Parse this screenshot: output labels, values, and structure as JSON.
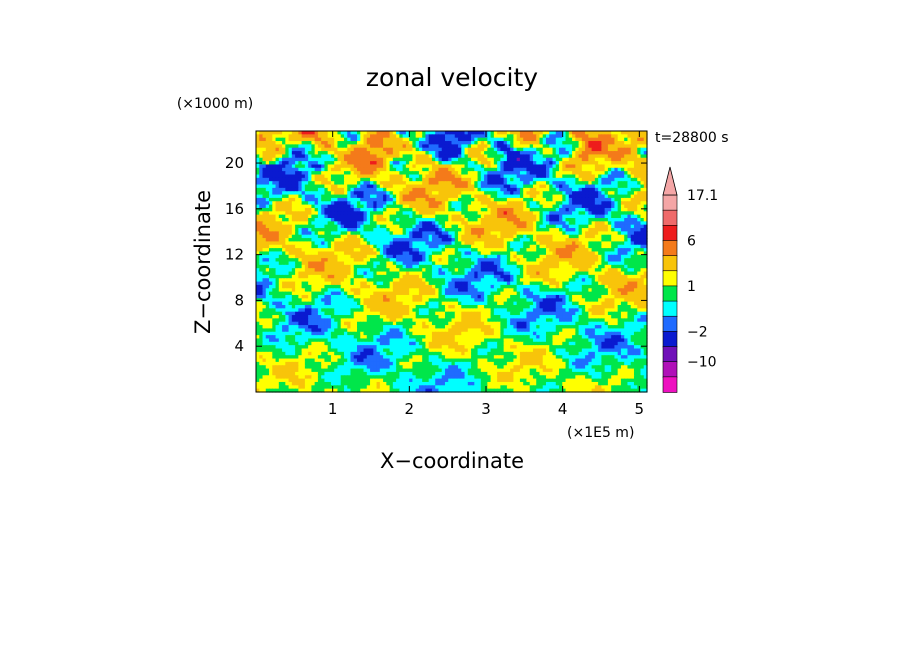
{
  "chart_data": {
    "type": "heatmap",
    "title": "zonal velocity",
    "timestamp": "t=28800 s",
    "xlabel": "X−coordinate",
    "ylabel": "Z−coordinate",
    "x_unit": "(×1E5 m)",
    "y_unit": "(×1000 m)",
    "xlim": [
      0,
      5.1
    ],
    "ylim": [
      0,
      22.8
    ],
    "x_ticks": [
      1,
      2,
      3,
      4,
      5
    ],
    "y_ticks": [
      4,
      8,
      12,
      16,
      20
    ],
    "grid": false,
    "colorbar": {
      "position": "right",
      "extend": "max",
      "labels": [
        {
          "text": "17.1",
          "level": 17.1
        },
        {
          "text": "6",
          "level": 6
        },
        {
          "text": "1",
          "level": 1
        },
        {
          "text": "−2",
          "level": -2
        },
        {
          "text": "−10",
          "level": -10
        }
      ],
      "bands": [
        {
          "lo": 13.0,
          "hi": 17.1,
          "color": "#f4a6a6"
        },
        {
          "lo": 9.0,
          "hi": 13.0,
          "color": "#ef6a6a"
        },
        {
          "lo": 6.0,
          "hi": 9.0,
          "color": "#ee1c1c"
        },
        {
          "lo": 4.0,
          "hi": 6.0,
          "color": "#f47a1a"
        },
        {
          "lo": 2.0,
          "hi": 4.0,
          "color": "#f8c40a"
        },
        {
          "lo": 1.0,
          "hi": 2.0,
          "color": "#ffff00"
        },
        {
          "lo": 0.0,
          "hi": 1.0,
          "color": "#00e64a"
        },
        {
          "lo": -1.0,
          "hi": 0.0,
          "color": "#00ffff"
        },
        {
          "lo": -2.0,
          "hi": -1.0,
          "color": "#1f6bff"
        },
        {
          "lo": -5.0,
          "hi": -2.0,
          "color": "#0a1ad0"
        },
        {
          "lo": -10.0,
          "hi": -5.0,
          "color": "#7010b8"
        },
        {
          "lo": -15.0,
          "hi": -10.0,
          "color": "#b010b8"
        },
        {
          "lo": -20.0,
          "hi": -15.0,
          "color": "#ee10c0"
        }
      ]
    }
  }
}
